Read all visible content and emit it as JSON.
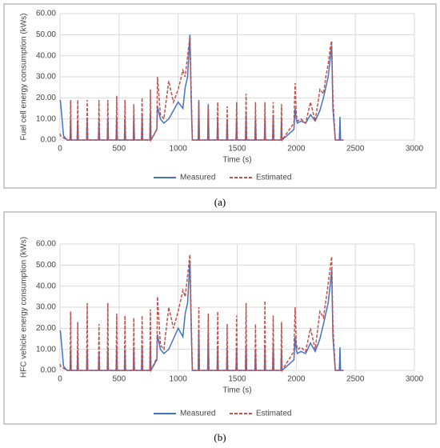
{
  "chart_data": [
    {
      "type": "line",
      "caption": "(a)",
      "xlabel": "Time (s)",
      "ylabel": "Fuel cell energy consumption (kWs)",
      "x": [
        0,
        5,
        30,
        60,
        85,
        90,
        95,
        145,
        150,
        155,
        225,
        230,
        235,
        325,
        330,
        335,
        400,
        405,
        410,
        475,
        480,
        485,
        545,
        550,
        555,
        620,
        625,
        630,
        690,
        695,
        700,
        760,
        765,
        770,
        820,
        825,
        850,
        880,
        920,
        960,
        1000,
        1040,
        1060,
        1080,
        1100,
        1110,
        1120,
        1170,
        1175,
        1180,
        1250,
        1255,
        1260,
        1330,
        1335,
        1340,
        1410,
        1415,
        1420,
        1490,
        1495,
        1500,
        1570,
        1575,
        1580,
        1650,
        1655,
        1660,
        1730,
        1735,
        1740,
        1800,
        1805,
        1810,
        1870,
        1875,
        1880,
        1980,
        1990,
        2000,
        2010,
        2040,
        2080,
        2120,
        2160,
        2200,
        2230,
        2250,
        2270,
        2290,
        2300,
        2310,
        2330,
        2365,
        2370,
        2375,
        2400
      ],
      "series": [
        {
          "name": "Measured",
          "color": "#4472c4",
          "dash": false,
          "values": [
            19,
            18,
            2,
            0,
            0,
            10,
            0,
            0,
            9,
            0,
            0,
            10,
            0,
            0,
            9,
            0,
            0,
            10,
            0,
            0,
            11,
            0,
            0,
            10,
            0,
            0,
            12,
            0,
            0,
            12,
            0,
            0,
            13,
            0,
            5,
            16,
            10,
            8,
            10,
            14,
            18,
            15,
            25,
            30,
            50,
            20,
            0,
            0,
            19,
            0,
            0,
            17,
            0,
            0,
            11,
            0,
            0,
            10,
            0,
            0,
            10,
            0,
            0,
            12,
            0,
            0,
            10,
            0,
            0,
            11,
            0,
            0,
            12,
            0,
            0,
            10,
            0,
            5,
            15,
            10,
            8,
            9,
            8,
            12,
            9,
            14,
            20,
            25,
            30,
            40,
            45,
            15,
            0,
            0,
            11,
            0,
            0
          ]
        },
        {
          "name": "Estimated",
          "color": "#c0504d",
          "dash": true,
          "values": [
            3,
            2,
            1,
            0,
            0,
            19,
            0,
            0,
            19,
            0,
            0,
            19,
            0,
            0,
            19,
            0,
            0,
            19,
            0,
            0,
            21,
            0,
            0,
            19,
            0,
            0,
            17,
            0,
            0,
            20,
            0,
            0,
            24,
            0,
            5,
            30,
            12,
            10,
            28,
            18,
            24,
            33,
            30,
            40,
            49,
            25,
            0,
            0,
            18,
            0,
            0,
            16,
            0,
            0,
            18,
            0,
            0,
            16,
            0,
            0,
            18,
            0,
            0,
            22,
            0,
            0,
            18,
            0,
            0,
            18,
            0,
            0,
            18,
            0,
            0,
            17,
            0,
            8,
            27,
            12,
            9,
            10,
            8,
            18,
            9,
            24,
            22,
            30,
            36,
            45,
            47,
            20,
            0,
            0,
            0,
            0,
            0
          ]
        }
      ],
      "xlim": [
        0,
        3000
      ],
      "ylim": [
        0,
        60
      ],
      "xticks": [
        0,
        500,
        1000,
        1500,
        2000,
        2500,
        3000
      ],
      "yticks": [
        {
          "value": 0,
          "label": "0.00"
        },
        {
          "value": 10,
          "label": "10.00"
        },
        {
          "value": 20,
          "label": "20.00"
        },
        {
          "value": 30,
          "label": "30.00"
        },
        {
          "value": 40,
          "label": "40.00"
        },
        {
          "value": 50,
          "label": "50.00"
        },
        {
          "value": 60,
          "label": "60.00"
        }
      ],
      "grid": true
    },
    {
      "type": "line",
      "caption": "(b)",
      "xlabel": "Time (s)",
      "ylabel": "HFC vehicle energy consumption (kWs)",
      "x": [
        0,
        5,
        30,
        60,
        85,
        90,
        95,
        145,
        150,
        155,
        225,
        230,
        235,
        325,
        330,
        335,
        400,
        405,
        410,
        475,
        480,
        485,
        545,
        550,
        555,
        620,
        625,
        630,
        690,
        695,
        700,
        760,
        765,
        770,
        820,
        825,
        850,
        880,
        920,
        960,
        1000,
        1040,
        1060,
        1080,
        1100,
        1110,
        1120,
        1170,
        1175,
        1180,
        1250,
        1255,
        1260,
        1330,
        1335,
        1340,
        1410,
        1415,
        1420,
        1490,
        1495,
        1500,
        1570,
        1575,
        1580,
        1650,
        1655,
        1660,
        1730,
        1735,
        1740,
        1800,
        1805,
        1810,
        1870,
        1875,
        1880,
        1980,
        1990,
        2000,
        2010,
        2040,
        2080,
        2120,
        2160,
        2200,
        2230,
        2250,
        2270,
        2290,
        2300,
        2310,
        2330,
        2365,
        2370,
        2375,
        2400
      ],
      "series": [
        {
          "name": "Measured",
          "color": "#4472c4",
          "dash": false,
          "values": [
            19,
            18,
            2,
            0,
            0,
            10,
            0,
            0,
            9,
            0,
            0,
            10,
            0,
            0,
            9,
            0,
            0,
            10,
            0,
            0,
            11,
            0,
            0,
            10,
            0,
            0,
            11,
            0,
            0,
            12,
            0,
            0,
            13,
            0,
            5,
            17,
            10,
            8,
            10,
            15,
            20,
            16,
            27,
            32,
            52,
            22,
            0,
            0,
            19,
            0,
            0,
            18,
            0,
            0,
            11,
            0,
            0,
            10,
            0,
            0,
            10,
            0,
            0,
            12,
            0,
            0,
            10,
            0,
            0,
            11,
            0,
            0,
            12,
            0,
            0,
            10,
            0,
            5,
            16,
            10,
            8,
            9,
            8,
            13,
            9,
            15,
            22,
            27,
            32,
            42,
            48,
            16,
            0,
            0,
            11,
            0,
            0
          ]
        },
        {
          "name": "Estimated",
          "color": "#c0504d",
          "dash": true,
          "values": [
            3,
            2,
            1,
            0,
            0,
            28,
            0,
            0,
            23,
            0,
            0,
            32,
            0,
            0,
            22,
            0,
            0,
            32,
            0,
            0,
            27,
            0,
            0,
            26,
            0,
            0,
            25,
            0,
            0,
            26,
            0,
            0,
            29,
            0,
            6,
            35,
            12,
            10,
            30,
            20,
            28,
            38,
            35,
            45,
            55,
            27,
            0,
            0,
            30,
            0,
            0,
            27,
            0,
            0,
            28,
            0,
            0,
            22,
            0,
            0,
            26,
            0,
            0,
            32,
            0,
            0,
            22,
            0,
            0,
            33,
            0,
            0,
            26,
            0,
            0,
            23,
            0,
            9,
            30,
            13,
            10,
            11,
            9,
            20,
            10,
            28,
            25,
            33,
            41,
            50,
            54,
            22,
            0,
            0,
            0,
            0,
            0
          ]
        }
      ],
      "xlim": [
        0,
        3000
      ],
      "ylim": [
        0,
        60
      ],
      "xticks": [
        0,
        500,
        1000,
        1500,
        2000,
        2500,
        3000
      ],
      "yticks": [
        {
          "value": 0,
          "label": "0.00"
        },
        {
          "value": 10,
          "label": "10.00"
        },
        {
          "value": 20,
          "label": "20.00"
        },
        {
          "value": 30,
          "label": "30.00"
        },
        {
          "value": 40,
          "label": "40.00"
        },
        {
          "value": 50,
          "label": "50.00"
        },
        {
          "value": 60,
          "label": "60.00"
        }
      ],
      "grid": true
    }
  ]
}
